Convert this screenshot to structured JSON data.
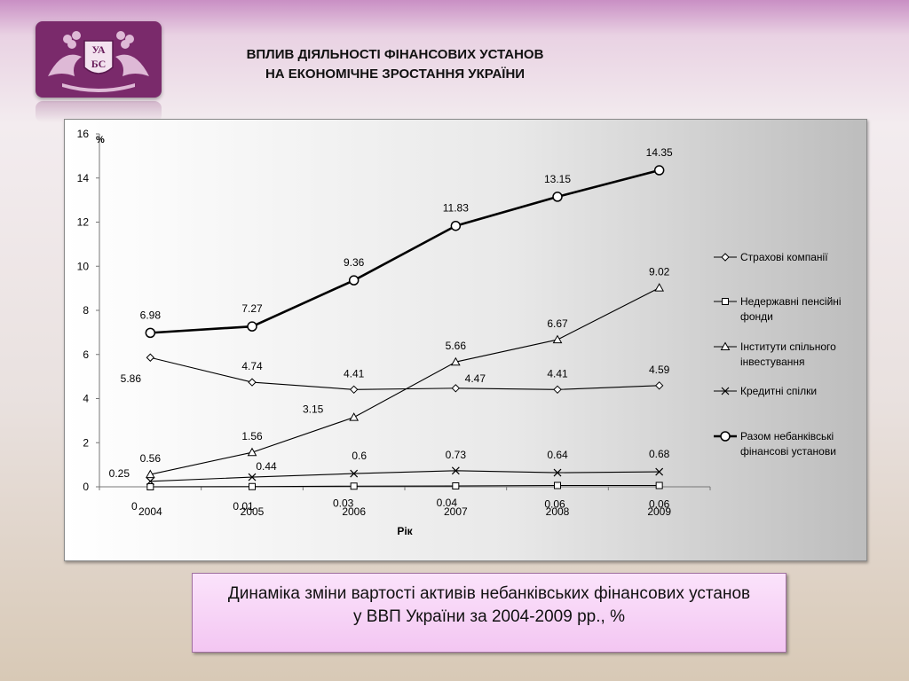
{
  "header": {
    "logo_text": "УАБС",
    "title_line1": "ВПЛИВ ДІЯЛЬНОСТІ ФІНАНСОВИХ УСТАНОВ",
    "title_line2": "НА ЕКОНОМІЧНЕ ЗРОСТАННЯ УКРАЇНИ"
  },
  "caption": {
    "line1": "Динаміка зміни вартості активів небанківських фінансових установ",
    "line2": "у ВВП України за 2004-2009 рр., %"
  },
  "colors": {
    "logo_bg": "#7a2a6b",
    "series_line": "#000000"
  },
  "chart_data": {
    "type": "line",
    "title": "",
    "xlabel": "Рік",
    "ylabel": "%",
    "x": [
      "2004",
      "2005",
      "2006",
      "2007",
      "2008",
      "2009"
    ],
    "ylim": [
      0,
      16
    ],
    "yticks": [
      "0",
      "2",
      "4",
      "6",
      "8",
      "10",
      "12",
      "14",
      "16"
    ],
    "grid": false,
    "legend_position": "right",
    "series": [
      {
        "name": "Страхові компанії",
        "marker": "diamond",
        "values": [
          5.86,
          4.74,
          4.41,
          4.47,
          4.41,
          4.59
        ],
        "labels": [
          "5.86",
          "4.74",
          "4.41",
          "4.47",
          "4.41",
          "4.59"
        ],
        "bold": false
      },
      {
        "name": "Недержавні пенсійні фонди",
        "marker": "square",
        "values": [
          0,
          0.01,
          0.03,
          0.04,
          0.06,
          0.06
        ],
        "labels": [
          "0",
          "0.01",
          "0.03",
          "0.04",
          "0.06",
          "0.06"
        ],
        "bold": false
      },
      {
        "name": "Інститути спільного інвестування",
        "marker": "triangle",
        "values": [
          0.56,
          1.56,
          3.15,
          5.66,
          6.67,
          9.02
        ],
        "labels": [
          "0.56",
          "1.56",
          "3.15",
          "5.66",
          "6.67",
          "9.02"
        ],
        "bold": false
      },
      {
        "name": "Кредитні спілки",
        "marker": "cross",
        "values": [
          0.25,
          0.44,
          0.6,
          0.73,
          0.64,
          0.68
        ],
        "labels": [
          "0.25",
          "0.44",
          "0.6",
          "0.73",
          "0.64",
          "0.68"
        ],
        "bold": false
      },
      {
        "name": "Разом небанківські фінансові установи",
        "marker": "circle",
        "values": [
          6.98,
          7.27,
          9.36,
          11.83,
          13.15,
          14.35
        ],
        "labels": [
          "6.98",
          "7.27",
          "9.36",
          "11.83",
          "13.15",
          "14.35"
        ],
        "bold": true
      }
    ]
  }
}
